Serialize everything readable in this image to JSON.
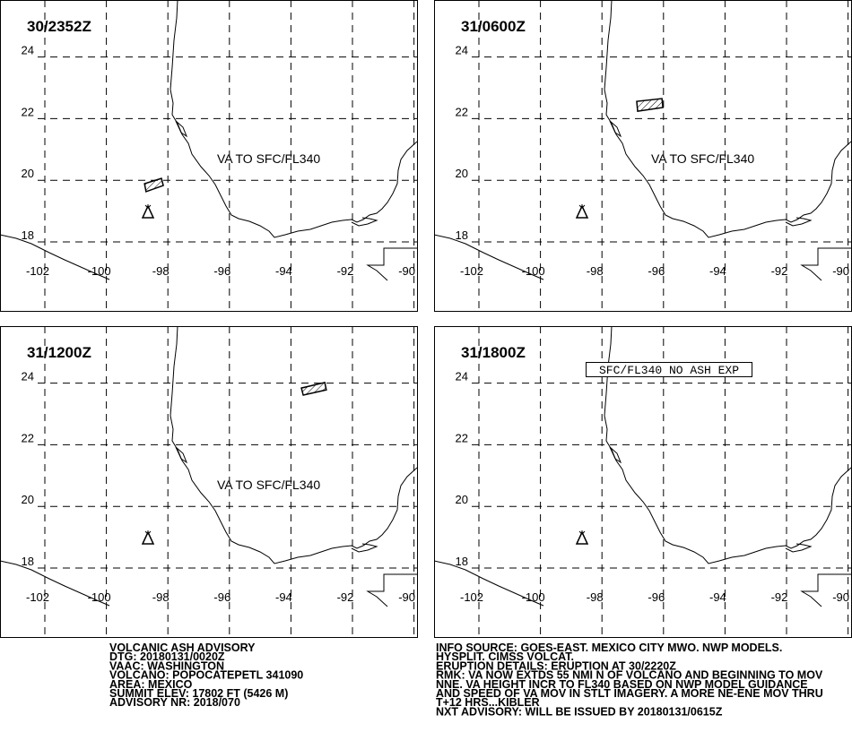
{
  "panels": [
    {
      "time": "30/2352Z",
      "label": "VA TO SFC/FL340",
      "ash_area": [
        [
          -98.76,
          19.89
        ],
        [
          -98.71,
          19.63
        ],
        [
          -98.15,
          19.83
        ],
        [
          -98.21,
          20.06
        ]
      ]
    },
    {
      "time": "31/0600Z",
      "label": "VA TO SFC/FL340",
      "ash_area": [
        [
          -96.87,
          22.56
        ],
        [
          -96.84,
          22.24
        ],
        [
          -96.02,
          22.36
        ],
        [
          -96.05,
          22.65
        ]
      ]
    },
    {
      "time": "31/1200Z",
      "label": "VA TO SFC/FL340",
      "ash_area": [
        [
          -93.66,
          23.84
        ],
        [
          -93.6,
          23.61
        ],
        [
          -92.85,
          23.78
        ],
        [
          -92.9,
          24.02
        ]
      ]
    },
    {
      "time": "31/1800Z",
      "label": "SFC/FL340 NO ASH EXP"
    }
  ],
  "xticks": [
    -102,
    -100,
    -98,
    -96,
    -94,
    -92,
    -90
  ],
  "yticks": [
    18,
    20,
    22,
    24
  ],
  "advisory_left": [
    "VOLCANIC ASH ADVISORY",
    "DTG: 20180131/0020Z",
    "VAAC: WASHINGTON",
    "VOLCANO: POPOCATEPETL 341090",
    "AREA: MEXICO",
    "SUMMIT ELEV: 17802 FT (5426 M)",
    "ADVISORY NR: 2018/070"
  ],
  "advisory_right": [
    "INFO SOURCE: GOES-EAST. MEXICO CITY MWO. NWP MODELS.",
    "HYSPLIT. CIMSS VOLCAT.",
    "ERUPTION DETAILS: ERUPTION AT 30/2220Z",
    "RMK: VA NOW EXTDS 55 NMI N OF VOLCANO AND BEGINNING TO MOV",
    "NNE. VA HEIGHT INCR TO FL340 BASED ON NWP MODEL GUIDANCE",
    "AND SPEED OF VA MOV IN STLT IMAGERY. A MORE NE-ENE MOV THRU",
    "T+12 HRS...KIBLER",
    "NXT ADVISORY: WILL BE ISSUED BY 20180131/0615Z"
  ]
}
